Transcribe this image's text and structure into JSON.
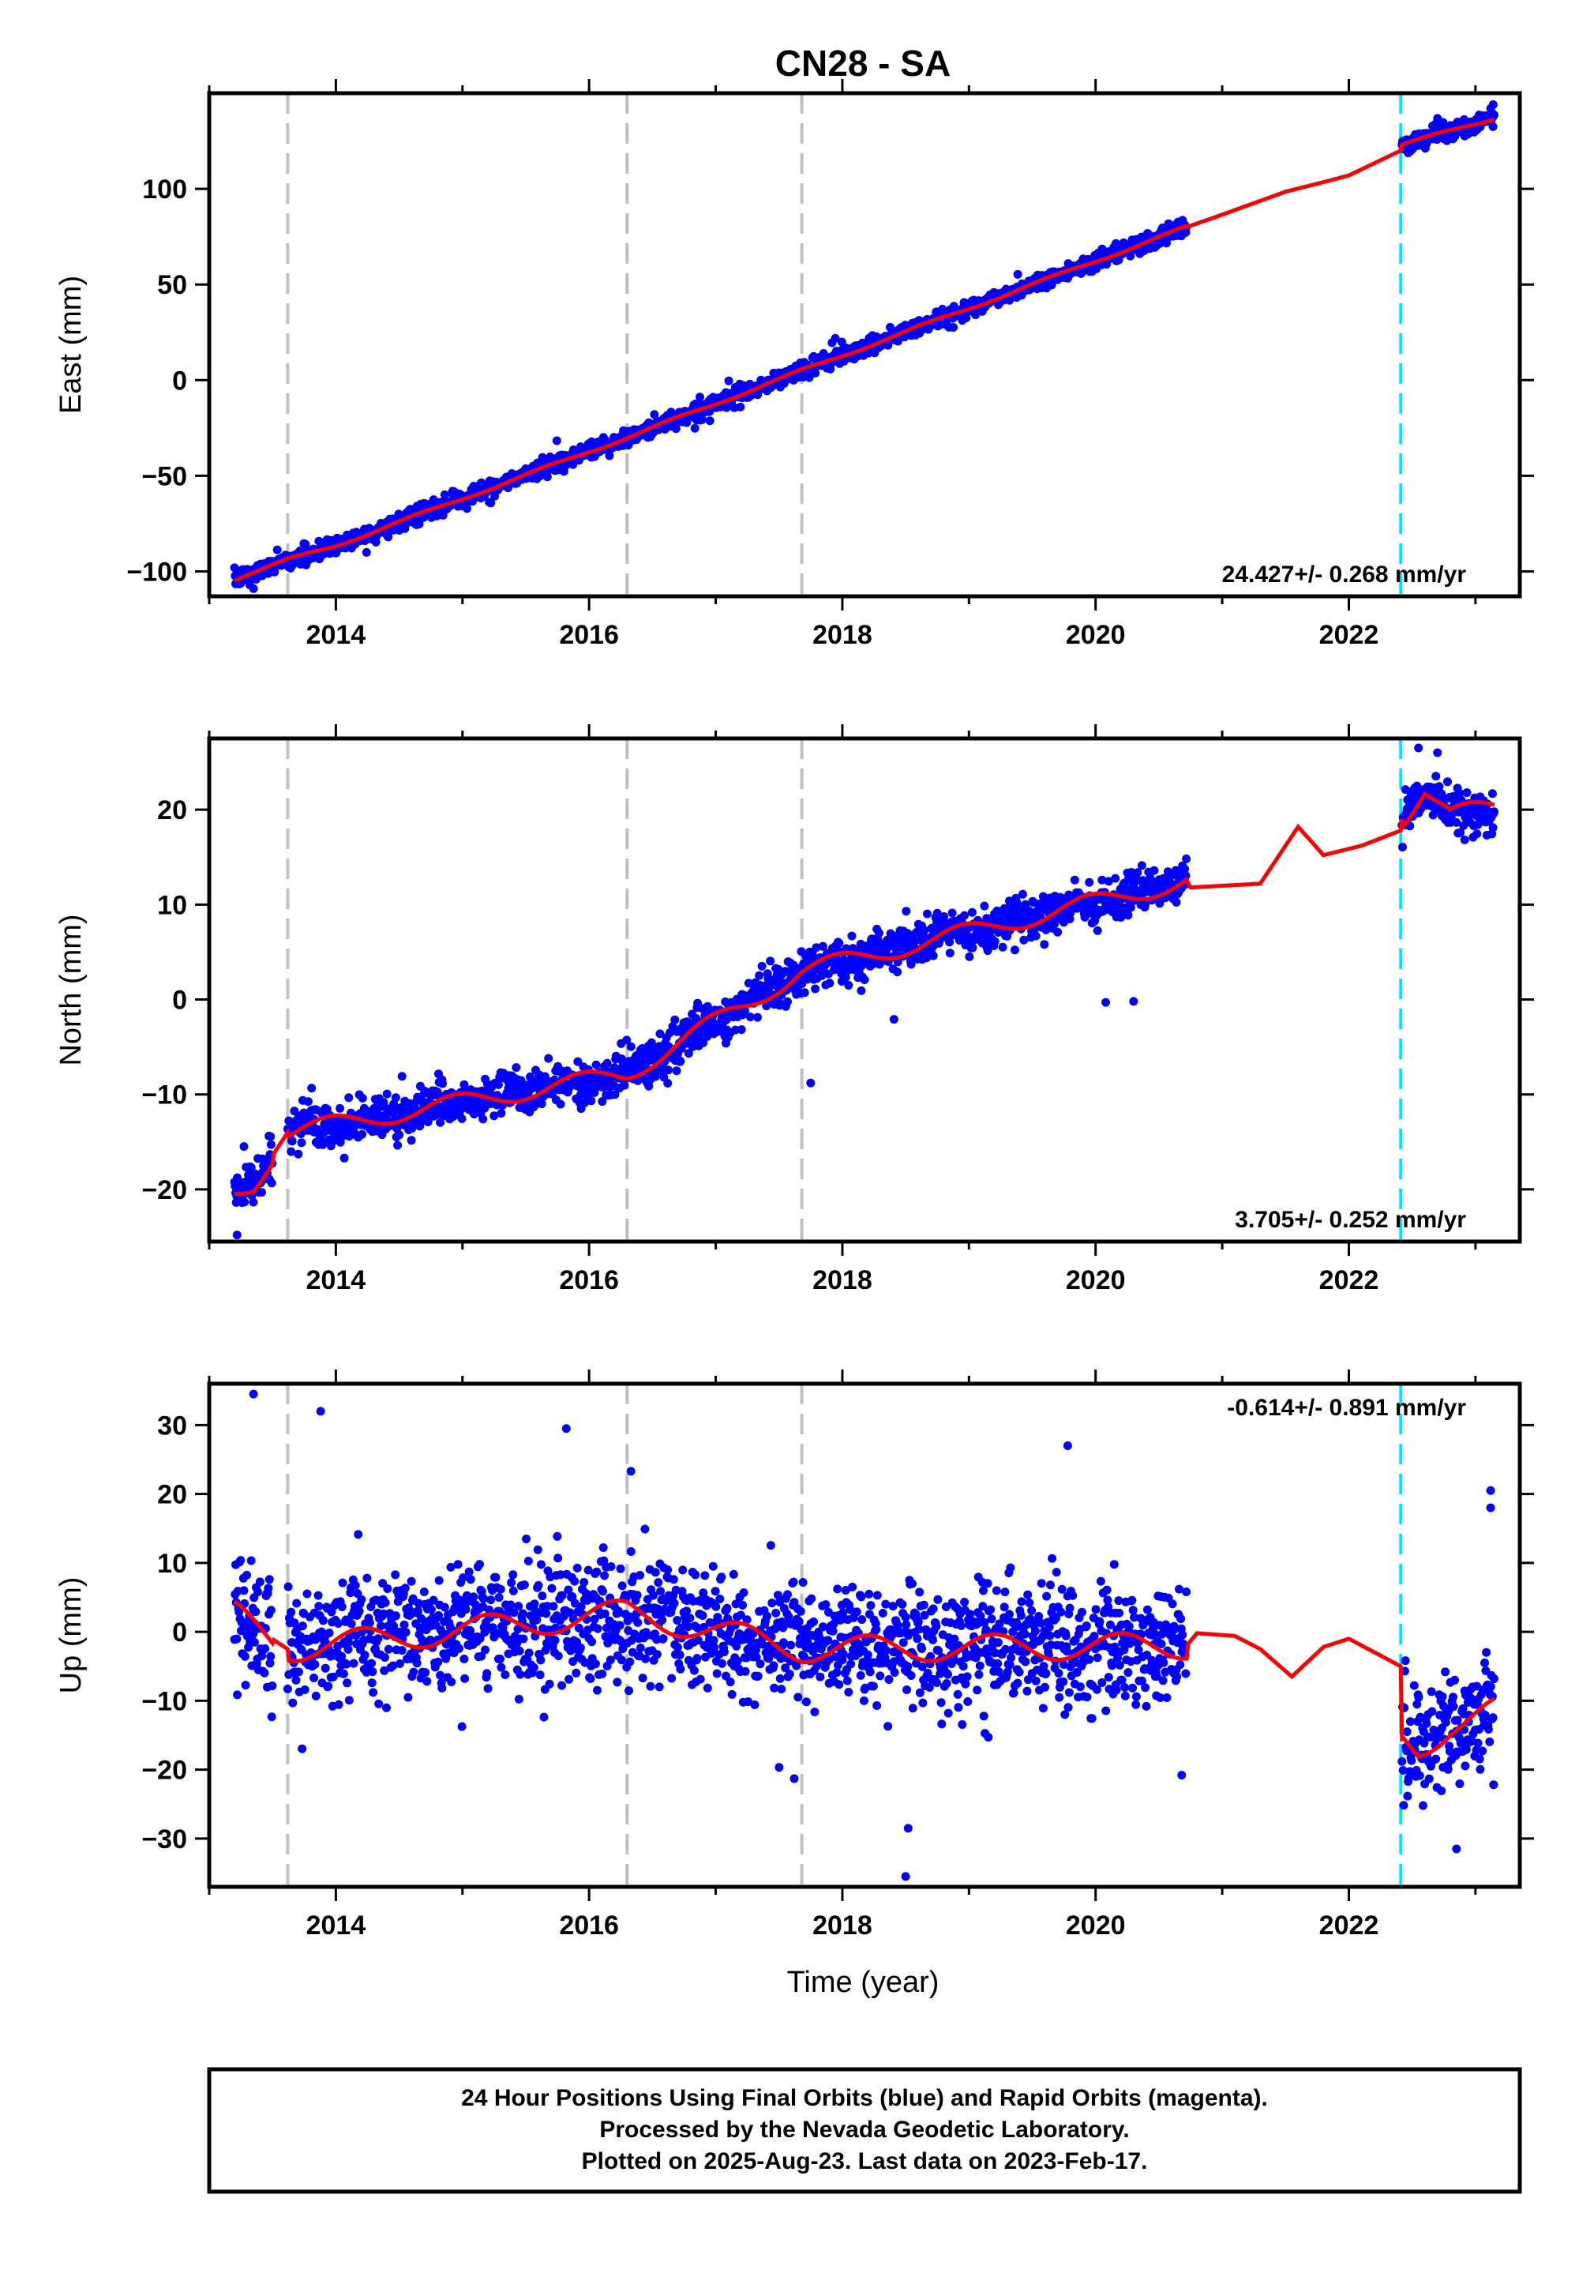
{
  "chart_data": {
    "type": "scatter",
    "title": "CN28 - SA",
    "xlabel": "Time (year)",
    "xlim": [
      2013.0,
      2023.35
    ],
    "xticks": [
      2014,
      2016,
      2018,
      2020,
      2022
    ],
    "xtick_labels": [
      "2014",
      "2016",
      "2018",
      "2020",
      "2022"
    ],
    "grey_dashed_lines_x": [
      2013.62,
      2016.3,
      2017.68
    ],
    "cyan_dashed_line_x": 2022.41,
    "colors": {
      "data": "#0000ff",
      "model": "#ff0000",
      "equipment_change": "#c0c0c0",
      "earthquake": "#00e5ff",
      "frame": "#000000"
    },
    "panels": [
      {
        "name": "east",
        "ylabel": "East (mm)",
        "ylim": [
          -113,
          150
        ],
        "yticks": [
          -100,
          -50,
          0,
          50,
          100
        ],
        "ytick_labels": [
          "−100",
          "−50",
          "0",
          "50",
          "100"
        ],
        "rate_label": "24.427+/- 0.268 mm/yr",
        "rate_position": "bottom-right",
        "data": {
          "segments": [
            [
              2013.2,
              2020.72
            ],
            [
              2022.42,
              2023.15
            ]
          ],
          "trend": 24.427,
          "intercept": 9.2,
          "t_ref": 2017.7,
          "seasonal_amp": 1.5,
          "seasonal_phase": 0.6,
          "noise": 2.2,
          "offset": 0
        },
        "model_anchors": [
          [
            2013.2,
            -104
          ],
          [
            2013.62,
            -94
          ],
          [
            2014.0,
            -86.5
          ],
          [
            2016.3,
            -30
          ],
          [
            2017.68,
            5
          ],
          [
            2020.72,
            80
          ],
          [
            2021.0,
            86.5
          ],
          [
            2021.5,
            98.5
          ],
          [
            2021.8,
            103.5
          ],
          [
            2022.0,
            107
          ],
          [
            2022.41,
            120
          ],
          [
            2022.42,
            123
          ],
          [
            2023.15,
            137
          ]
        ],
        "outliers": [
          [
            2013.32,
            -107
          ],
          [
            2013.35,
            -109
          ],
          [
            2023.12,
            142
          ],
          [
            2023.14,
            144
          ]
        ]
      },
      {
        "name": "north",
        "ylabel": "North (mm)",
        "ylim": [
          -25.5,
          27.5
        ],
        "yticks": [
          -20,
          -10,
          0,
          10,
          20
        ],
        "ytick_labels": [
          "−20",
          "−10",
          "0",
          "10",
          "20"
        ],
        "rate_label": "3.705+/- 0.252 mm/yr",
        "rate_position": "bottom-right",
        "data": {
          "segments": [
            [
              2013.2,
              2013.5
            ],
            [
              2013.62,
              2020.72
            ],
            [
              2022.42,
              2023.15
            ]
          ],
          "trend": 3.705,
          "intercept": -4.6,
          "t_ref": 2017.7,
          "seasonal_amp": 1.9,
          "seasonal_phase": 0.3,
          "noise": 1.1,
          "offset": 0
        },
        "model_anchors": [
          [
            2013.2,
            -20.5
          ],
          [
            2013.35,
            -19.5
          ],
          [
            2013.62,
            -14
          ],
          [
            2016.3,
            -7.8
          ],
          [
            2017.68,
            3
          ],
          [
            2020.72,
            12.5
          ],
          [
            2020.75,
            11.8
          ],
          [
            2021.3,
            12.2
          ],
          [
            2021.6,
            18.2
          ],
          [
            2021.8,
            15.2
          ],
          [
            2022.1,
            16.2
          ],
          [
            2022.41,
            17.8
          ],
          [
            2022.42,
            19
          ],
          [
            2022.6,
            22.2
          ],
          [
            2022.8,
            19.5
          ],
          [
            2023.15,
            20.2
          ]
        ],
        "outliers": [
          [
            2013.22,
            -24.8
          ],
          [
            2017.75,
            -8.8
          ],
          [
            2020.08,
            -0.3
          ],
          [
            2020.3,
            -0.2
          ],
          [
            2022.55,
            26.5
          ],
          [
            2022.7,
            26
          ]
        ]
      },
      {
        "name": "up",
        "ylabel": "Up (mm)",
        "ylim": [
          -37,
          36
        ],
        "yticks": [
          -30,
          -20,
          -10,
          0,
          10,
          20,
          30
        ],
        "ytick_labels": [
          "−30",
          "−20",
          "−10",
          "0",
          "10",
          "20",
          "30"
        ],
        "rate_label": "-0.614+/- 0.891 mm/yr",
        "rate_position": "top-right",
        "data": {
          "segments": [
            [
              2013.2,
              2013.5
            ],
            [
              2013.62,
              2020.72
            ],
            [
              2022.42,
              2023.15
            ]
          ],
          "trend": -0.614,
          "intercept": 0.5,
          "t_ref": 2017.7,
          "seasonal_amp": 3.8,
          "seasonal_phase": 0.05,
          "noise": 4.2,
          "offset": 0
        },
        "model_anchors": [
          [
            2013.2,
            2.5
          ],
          [
            2013.62,
            -2.5
          ],
          [
            2016.3,
            2.8
          ],
          [
            2017.68,
            -2.5
          ],
          [
            2020.72,
            -2
          ],
          [
            2020.8,
            -0.2
          ],
          [
            2021.1,
            -0.6
          ],
          [
            2021.3,
            -2.5
          ],
          [
            2021.55,
            -6.5
          ],
          [
            2021.8,
            -2.2
          ],
          [
            2022.0,
            -1
          ],
          [
            2022.41,
            -5
          ],
          [
            2022.42,
            -15.5
          ],
          [
            2022.55,
            -17
          ],
          [
            2022.8,
            -13.5
          ],
          [
            2023.15,
            -11.5
          ]
        ],
        "outliers": [
          [
            2013.35,
            34.5
          ],
          [
            2013.88,
            32
          ],
          [
            2015.82,
            29.5
          ],
          [
            2016.33,
            23.3
          ],
          [
            2019.78,
            27
          ],
          [
            2018.5,
            -35.5
          ],
          [
            2018.52,
            -28.5
          ],
          [
            2017.62,
            -21.3
          ],
          [
            2020.68,
            -20.8
          ],
          [
            2022.85,
            -31.5
          ],
          [
            2023.12,
            20.5
          ],
          [
            2023.12,
            18
          ]
        ]
      }
    ]
  },
  "footer": {
    "line1": "24 Hour Positions Using Final Orbits (blue) and Rapid Orbits (magenta).",
    "line2": "Processed by the Nevada Geodetic Laboratory.",
    "line3": "Plotted on 2025-Aug-23. Last data on 2023-Feb-17."
  }
}
